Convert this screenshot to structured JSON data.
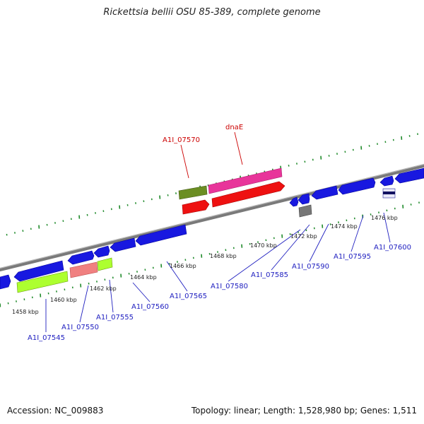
{
  "title": "Rickettsia bellii OSU 85-389, complete genome",
  "footer": {
    "accession": "Accession: NC_009883",
    "summary": "Topology: linear; Length: 1,528,980 bp; Genes: 1,511"
  },
  "colors": {
    "backbone": "#8a8a8a",
    "tick": "#1f8a2a",
    "label_link": "#2020c0",
    "label_highlight": "#cc0000"
  },
  "ticks": [
    {
      "label": "1458 kbp"
    },
    {
      "label": "1460 kbp"
    },
    {
      "label": "1462 kbp"
    },
    {
      "label": "1464 kbp"
    },
    {
      "label": "1466 kbp"
    },
    {
      "label": "1468 kbp"
    },
    {
      "label": "1470 kbp"
    },
    {
      "label": "1472 kbp"
    },
    {
      "label": "1474 kbp"
    },
    {
      "label": "1476 kbp"
    }
  ],
  "gene_labels": [
    {
      "label": "A1I_07545",
      "color": "#2020c0"
    },
    {
      "label": "A1I_07550",
      "color": "#2020c0"
    },
    {
      "label": "A1I_07555",
      "color": "#2020c0"
    },
    {
      "label": "A1I_07560",
      "color": "#2020c0"
    },
    {
      "label": "A1I_07565",
      "color": "#2020c0"
    },
    {
      "label": "A1I_07570",
      "color": "#cc0000"
    },
    {
      "label": "dnaE",
      "color": "#cc0000"
    },
    {
      "label": "A1I_07580",
      "color": "#2020c0"
    },
    {
      "label": "A1I_07585",
      "color": "#2020c0"
    },
    {
      "label": "A1I_07590",
      "color": "#2020c0"
    },
    {
      "label": "A1I_07595",
      "color": "#2020c0"
    },
    {
      "label": "A1I_07600",
      "color": "#2020c0"
    }
  ]
}
